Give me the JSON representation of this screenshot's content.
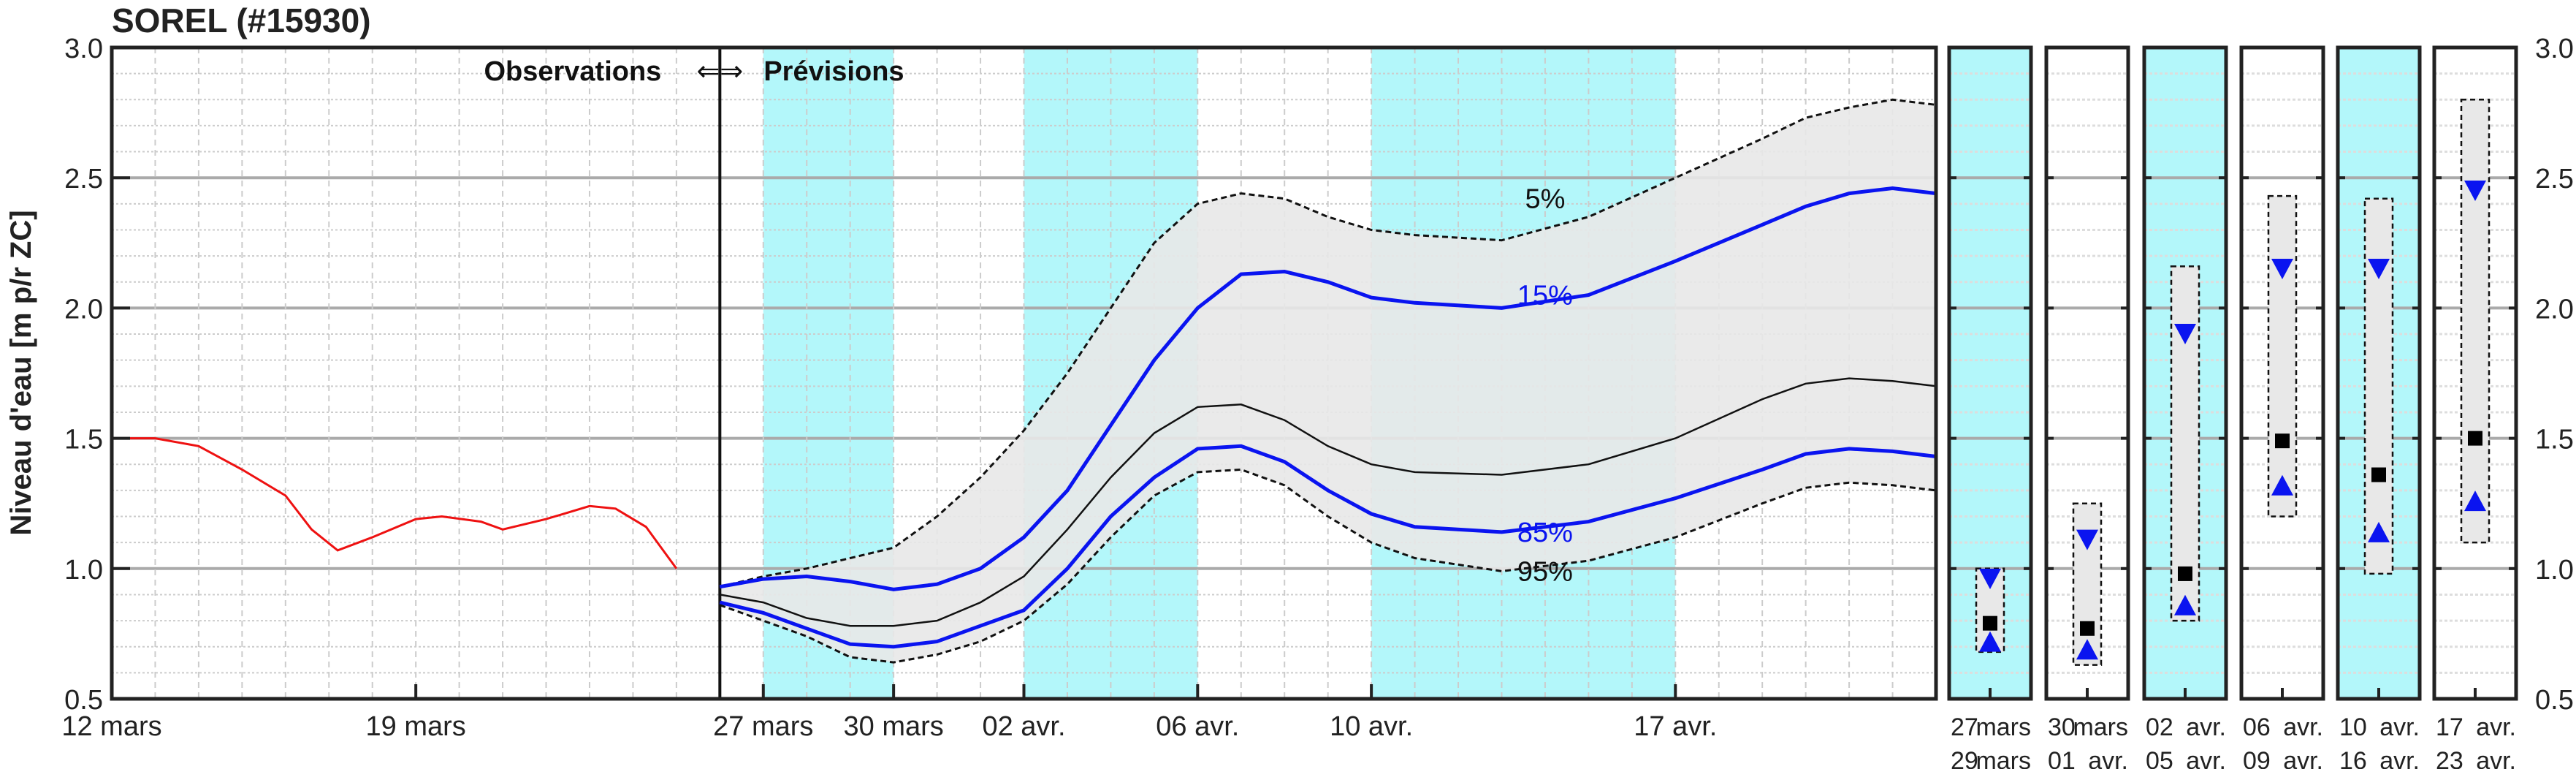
{
  "title": "SOREL (#15930)",
  "colors": {
    "cyan": "#b3f7fa",
    "band": "#e8e8e8",
    "blue": "#0a14f0",
    "obs": "#ee1111"
  },
  "chart_data": {
    "type": "line",
    "title": "SOREL (#15930)",
    "ylabel": "Niveau d'eau [m p/r ZC]",
    "ylim": [
      0.5,
      3.0
    ],
    "yticks": [
      "0.5",
      "1.0",
      "1.5",
      "2.0",
      "2.5",
      "3.0"
    ],
    "x_unit": "days since 12 mars",
    "xlim": [
      0,
      42
    ],
    "xticks": [
      {
        "d": 0,
        "label": "12 mars"
      },
      {
        "d": 7,
        "label": "19 mars"
      },
      {
        "d": 15,
        "label": "27 mars"
      },
      {
        "d": 18,
        "label": "30 mars"
      },
      {
        "d": 21,
        "label": "02 avr."
      },
      {
        "d": 25,
        "label": "06 avr."
      },
      {
        "d": 29,
        "label": "10 avr."
      },
      {
        "d": 36,
        "label": "17 avr."
      }
    ],
    "divider_day": 14,
    "annot_obs": "Observations",
    "annot_arrows": "⇐⇒",
    "annot_prev": "Prévisions",
    "cyan_bands": [
      [
        15,
        18
      ],
      [
        21,
        25
      ],
      [
        29,
        36
      ]
    ],
    "observations": {
      "x": [
        0,
        1,
        2,
        3,
        4,
        4.6,
        5.2,
        6,
        7,
        7.6,
        8.5,
        9,
        10,
        11,
        11.6,
        12.3,
        13
      ],
      "y": [
        1.5,
        1.5,
        1.47,
        1.38,
        1.28,
        1.15,
        1.07,
        1.12,
        1.19,
        1.2,
        1.18,
        1.15,
        1.19,
        1.24,
        1.23,
        1.16,
        1.0
      ]
    },
    "forecast_x": [
      14,
      15,
      16,
      17,
      18,
      19,
      20,
      21,
      22,
      23,
      24,
      25,
      26,
      27,
      28,
      29,
      30,
      32,
      34,
      36,
      38,
      39,
      40,
      41,
      42
    ],
    "series": [
      {
        "name": "5%",
        "style": "dashed",
        "y": [
          0.93,
          0.97,
          1.0,
          1.04,
          1.08,
          1.2,
          1.35,
          1.53,
          1.75,
          2.0,
          2.25,
          2.4,
          2.44,
          2.42,
          2.35,
          2.3,
          2.28,
          2.26,
          2.35,
          2.5,
          2.65,
          2.73,
          2.77,
          2.8,
          2.78
        ]
      },
      {
        "name": "15%",
        "style": "blue",
        "y": [
          0.93,
          0.96,
          0.97,
          0.95,
          0.92,
          0.94,
          1.0,
          1.12,
          1.3,
          1.55,
          1.8,
          2.0,
          2.13,
          2.14,
          2.1,
          2.04,
          2.02,
          2.0,
          2.05,
          2.18,
          2.32,
          2.39,
          2.44,
          2.46,
          2.44
        ]
      },
      {
        "name": "median",
        "style": "black",
        "y": [
          0.9,
          0.87,
          0.81,
          0.78,
          0.78,
          0.8,
          0.87,
          0.97,
          1.15,
          1.35,
          1.52,
          1.62,
          1.63,
          1.57,
          1.47,
          1.4,
          1.37,
          1.36,
          1.4,
          1.5,
          1.65,
          1.71,
          1.73,
          1.72,
          1.7
        ]
      },
      {
        "name": "85%",
        "style": "blue",
        "y": [
          0.87,
          0.83,
          0.77,
          0.71,
          0.7,
          0.72,
          0.78,
          0.84,
          1.0,
          1.2,
          1.35,
          1.46,
          1.47,
          1.41,
          1.3,
          1.21,
          1.16,
          1.14,
          1.18,
          1.27,
          1.38,
          1.44,
          1.46,
          1.45,
          1.43
        ]
      },
      {
        "name": "95%",
        "style": "dashed",
        "y": [
          0.86,
          0.8,
          0.74,
          0.66,
          0.64,
          0.67,
          0.72,
          0.8,
          0.94,
          1.12,
          1.28,
          1.37,
          1.38,
          1.32,
          1.2,
          1.1,
          1.04,
          0.99,
          1.03,
          1.12,
          1.25,
          1.31,
          1.33,
          1.32,
          1.3
        ]
      }
    ],
    "series_labels": [
      {
        "text": "5%",
        "d": 33,
        "v": 2.42,
        "color": "black"
      },
      {
        "text": "15%",
        "d": 33,
        "v": 2.05,
        "color": "blue"
      },
      {
        "text": "85%",
        "d": 33,
        "v": 1.14,
        "color": "blue"
      },
      {
        "text": "95%",
        "d": 33,
        "v": 0.99,
        "color": "black"
      }
    ],
    "panels": [
      {
        "line1": [
          "27",
          "mars"
        ],
        "line2": [
          "29",
          "mars"
        ],
        "cyan": true,
        "low": 0.68,
        "high": 1.0,
        "median": 0.79,
        "p15": 0.96,
        "p85": 0.72
      },
      {
        "line1": [
          "30",
          "mars"
        ],
        "line2": [
          "01",
          "avr."
        ],
        "cyan": false,
        "low": 0.63,
        "high": 1.25,
        "median": 0.77,
        "p15": 1.11,
        "p85": 0.69
      },
      {
        "line1": [
          "02",
          "avr."
        ],
        "line2": [
          "05",
          "avr."
        ],
        "cyan": true,
        "low": 0.8,
        "high": 2.16,
        "median": 0.98,
        "p15": 1.9,
        "p85": 0.86
      },
      {
        "line1": [
          "06",
          "avr."
        ],
        "line2": [
          "09",
          "avr."
        ],
        "cyan": false,
        "low": 1.2,
        "high": 2.43,
        "median": 1.49,
        "p15": 2.15,
        "p85": 1.32
      },
      {
        "line1": [
          "10",
          "avr."
        ],
        "line2": [
          "16",
          "avr."
        ],
        "cyan": true,
        "low": 0.98,
        "high": 2.42,
        "median": 1.36,
        "p15": 2.15,
        "p85": 1.14
      },
      {
        "line1": [
          "17",
          "avr."
        ],
        "line2": [
          "23",
          "avr."
        ],
        "cyan": false,
        "low": 1.1,
        "high": 2.8,
        "median": 1.5,
        "p15": 2.45,
        "p85": 1.26
      }
    ]
  }
}
